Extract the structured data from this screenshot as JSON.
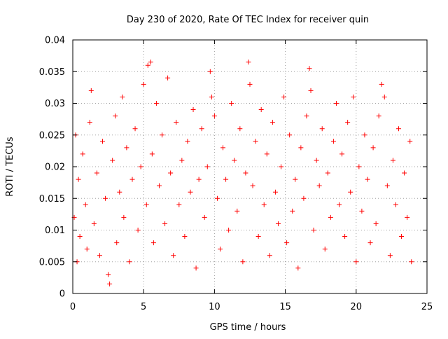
{
  "chart_data": {
    "type": "scatter",
    "title": "Day 230 of 2020, Rate Of TEC Index for receiver quin",
    "xlabel": "GPS time / hours",
    "ylabel": "ROTI / TECUs",
    "xlim": [
      0,
      25
    ],
    "ylim": [
      0,
      0.04
    ],
    "xticks": [
      0,
      5,
      10,
      15,
      20,
      25
    ],
    "xtick_labels": [
      "0",
      "5",
      "10",
      "15",
      "20",
      "25"
    ],
    "yticks": [
      0,
      0.005,
      0.01,
      0.015,
      0.02,
      0.025,
      0.03,
      0.035,
      0.04
    ],
    "ytick_labels": [
      "0",
      "0.005",
      "0.01",
      "0.015",
      "0.02",
      "0.025",
      "0.03",
      "0.035",
      "0.04"
    ],
    "grid": true,
    "marker": "+",
    "color": "#ff0000",
    "series": [
      {
        "points": [
          [
            0.1,
            0.012
          ],
          [
            0.2,
            0.025
          ],
          [
            0.3,
            0.005
          ],
          [
            0.4,
            0.018
          ],
          [
            0.5,
            0.009
          ],
          [
            0.7,
            0.022
          ],
          [
            0.9,
            0.014
          ],
          [
            1.0,
            0.007
          ],
          [
            1.2,
            0.027
          ],
          [
            1.3,
            0.032
          ],
          [
            1.5,
            0.011
          ],
          [
            1.7,
            0.019
          ],
          [
            1.9,
            0.006
          ],
          [
            2.1,
            0.024
          ],
          [
            2.3,
            0.015
          ],
          [
            2.5,
            0.003
          ],
          [
            2.6,
            0.0015
          ],
          [
            2.8,
            0.021
          ],
          [
            3.0,
            0.028
          ],
          [
            3.1,
            0.008
          ],
          [
            3.3,
            0.016
          ],
          [
            3.5,
            0.031
          ],
          [
            3.6,
            0.012
          ],
          [
            3.8,
            0.023
          ],
          [
            4.0,
            0.005
          ],
          [
            4.2,
            0.018
          ],
          [
            4.4,
            0.026
          ],
          [
            4.6,
            0.01
          ],
          [
            4.8,
            0.02
          ],
          [
            5.0,
            0.033
          ],
          [
            5.2,
            0.014
          ],
          [
            5.3,
            0.036
          ],
          [
            5.5,
            0.0365
          ],
          [
            5.6,
            0.022
          ],
          [
            5.7,
            0.008
          ],
          [
            5.9,
            0.03
          ],
          [
            6.1,
            0.017
          ],
          [
            6.3,
            0.025
          ],
          [
            6.5,
            0.011
          ],
          [
            6.7,
            0.034
          ],
          [
            6.9,
            0.019
          ],
          [
            7.1,
            0.006
          ],
          [
            7.3,
            0.027
          ],
          [
            7.5,
            0.014
          ],
          [
            7.7,
            0.021
          ],
          [
            7.9,
            0.009
          ],
          [
            8.1,
            0.024
          ],
          [
            8.3,
            0.016
          ],
          [
            8.5,
            0.029
          ],
          [
            8.7,
            0.004
          ],
          [
            8.9,
            0.018
          ],
          [
            9.1,
            0.026
          ],
          [
            9.3,
            0.012
          ],
          [
            9.5,
            0.02
          ],
          [
            9.7,
            0.035
          ],
          [
            9.8,
            0.031
          ],
          [
            10.0,
            0.028
          ],
          [
            10.2,
            0.015
          ],
          [
            10.4,
            0.007
          ],
          [
            10.6,
            0.023
          ],
          [
            10.8,
            0.018
          ],
          [
            11.0,
            0.01
          ],
          [
            11.2,
            0.03
          ],
          [
            11.4,
            0.021
          ],
          [
            11.6,
            0.013
          ],
          [
            11.8,
            0.026
          ],
          [
            12.0,
            0.005
          ],
          [
            12.2,
            0.019
          ],
          [
            12.4,
            0.0365
          ],
          [
            12.5,
            0.033
          ],
          [
            12.7,
            0.017
          ],
          [
            12.9,
            0.024
          ],
          [
            13.1,
            0.009
          ],
          [
            13.3,
            0.029
          ],
          [
            13.5,
            0.014
          ],
          [
            13.7,
            0.022
          ],
          [
            13.9,
            0.006
          ],
          [
            14.1,
            0.027
          ],
          [
            14.3,
            0.016
          ],
          [
            14.5,
            0.011
          ],
          [
            14.7,
            0.02
          ],
          [
            14.9,
            0.031
          ],
          [
            15.1,
            0.008
          ],
          [
            15.3,
            0.025
          ],
          [
            15.5,
            0.013
          ],
          [
            15.7,
            0.018
          ],
          [
            15.9,
            0.004
          ],
          [
            16.1,
            0.023
          ],
          [
            16.3,
            0.015
          ],
          [
            16.5,
            0.028
          ],
          [
            16.7,
            0.0355
          ],
          [
            16.8,
            0.032
          ],
          [
            17.0,
            0.01
          ],
          [
            17.2,
            0.021
          ],
          [
            17.4,
            0.017
          ],
          [
            17.6,
            0.026
          ],
          [
            17.8,
            0.007
          ],
          [
            18.0,
            0.019
          ],
          [
            18.2,
            0.012
          ],
          [
            18.4,
            0.024
          ],
          [
            18.6,
            0.03
          ],
          [
            18.8,
            0.014
          ],
          [
            19.0,
            0.022
          ],
          [
            19.2,
            0.009
          ],
          [
            19.4,
            0.027
          ],
          [
            19.6,
            0.016
          ],
          [
            19.8,
            0.031
          ],
          [
            20.0,
            0.005
          ],
          [
            20.2,
            0.02
          ],
          [
            20.4,
            0.013
          ],
          [
            20.6,
            0.025
          ],
          [
            20.8,
            0.018
          ],
          [
            21.0,
            0.008
          ],
          [
            21.2,
            0.023
          ],
          [
            21.4,
            0.011
          ],
          [
            21.6,
            0.028
          ],
          [
            21.8,
            0.033
          ],
          [
            22.0,
            0.031
          ],
          [
            22.2,
            0.017
          ],
          [
            22.4,
            0.006
          ],
          [
            22.6,
            0.021
          ],
          [
            22.8,
            0.014
          ],
          [
            23.0,
            0.026
          ],
          [
            23.2,
            0.009
          ],
          [
            23.4,
            0.019
          ],
          [
            23.6,
            0.012
          ],
          [
            23.8,
            0.024
          ],
          [
            23.9,
            0.005
          ]
        ]
      }
    ]
  }
}
